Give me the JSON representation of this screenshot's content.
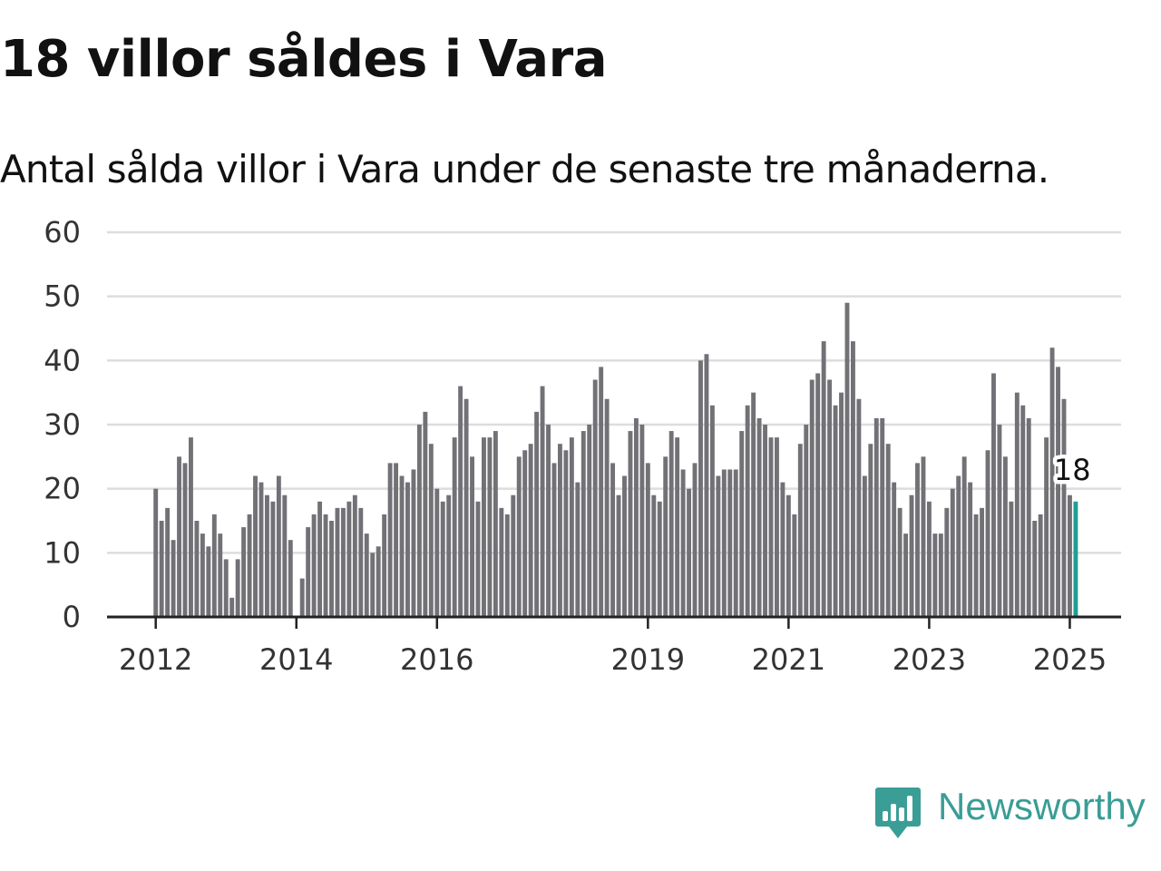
{
  "title": "18 villor såldes i Vara",
  "subtitle": "Antal sålda villor i Vara under de senaste tre månaderna.",
  "brand": {
    "name": "Newsworthy",
    "icon": "newsworthy-logo-icon",
    "color": "#3a9d96"
  },
  "colors": {
    "bar": "#727176",
    "highlight": "#1f9e95",
    "grid": "#dddddd",
    "axis": "#222222"
  },
  "chart_data": {
    "type": "bar",
    "title": "18 villor såldes i Vara",
    "subtitle": "Antal sålda villor i Vara under de senaste tre månaderna.",
    "xlabel": "",
    "ylabel": "",
    "ylim": [
      0,
      60
    ],
    "yticks": [
      0,
      10,
      20,
      30,
      40,
      50,
      60
    ],
    "grid": true,
    "start": "2012-01",
    "end": "2025-02",
    "xtick_labels": [
      {
        "label": "2012",
        "period": "2012-01"
      },
      {
        "label": "2014",
        "period": "2014-01"
      },
      {
        "label": "2016",
        "period": "2016-01"
      },
      {
        "label": "2019",
        "period": "2019-01"
      },
      {
        "label": "2021",
        "period": "2021-01"
      },
      {
        "label": "2023",
        "period": "2023-01"
      },
      {
        "label": "2025",
        "period": "2025-01"
      }
    ],
    "values": [
      20,
      15,
      17,
      12,
      25,
      24,
      28,
      15,
      13,
      11,
      16,
      13,
      9,
      3,
      9,
      14,
      16,
      22,
      21,
      19,
      18,
      22,
      19,
      12,
      0,
      6,
      14,
      16,
      18,
      16,
      15,
      17,
      17,
      18,
      19,
      17,
      13,
      10,
      11,
      16,
      24,
      24,
      22,
      21,
      23,
      30,
      32,
      27,
      20,
      18,
      19,
      28,
      36,
      34,
      25,
      18,
      28,
      28,
      29,
      17,
      16,
      19,
      25,
      26,
      27,
      32,
      36,
      30,
      24,
      27,
      26,
      28,
      21,
      29,
      30,
      37,
      39,
      34,
      24,
      19,
      22,
      29,
      31,
      30,
      24,
      19,
      18,
      25,
      29,
      28,
      23,
      20,
      24,
      40,
      41,
      33,
      22,
      23,
      23,
      23,
      29,
      33,
      35,
      31,
      30,
      28,
      28,
      21,
      19,
      16,
      27,
      30,
      37,
      38,
      43,
      37,
      33,
      35,
      49,
      43,
      34,
      22,
      27,
      31,
      31,
      27,
      21,
      17,
      13,
      19,
      24,
      25,
      18,
      13,
      13,
      17,
      20,
      22,
      25,
      21,
      16,
      17,
      26,
      38,
      30,
      25,
      18,
      35,
      33,
      31,
      15,
      16,
      28,
      42,
      39,
      34,
      19,
      18
    ],
    "highlight_last": true,
    "annotation": {
      "text": "18",
      "value": 18
    }
  }
}
